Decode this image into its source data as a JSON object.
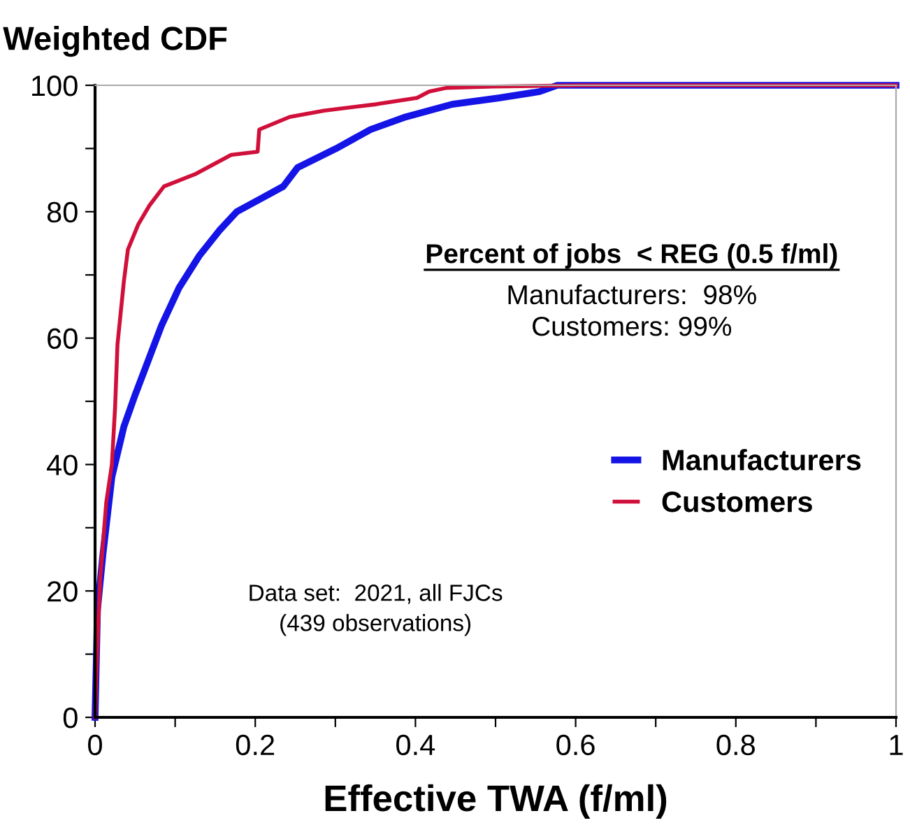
{
  "chart_data": {
    "type": "line",
    "ylabel": "Weighted CDF",
    "xlabel": "Effective TWA (f/ml)",
    "xlim": [
      0,
      1
    ],
    "ylim": [
      0,
      100
    ],
    "xticks": [
      0,
      {
        "value": 0.1,
        "label": null
      },
      0.2,
      {
        "value": 0.3,
        "label": null
      },
      0.4,
      {
        "value": 0.5,
        "label": null
      },
      0.6,
      {
        "value": 0.7,
        "label": null
      },
      0.8,
      {
        "value": 0.9,
        "label": null
      },
      1
    ],
    "yticks": [
      0,
      {
        "value": 10,
        "label": null
      },
      20,
      {
        "value": 30,
        "label": null
      },
      40,
      {
        "value": 50,
        "label": null
      },
      60,
      {
        "value": 70,
        "label": null
      },
      80,
      {
        "value": 90,
        "label": null
      },
      100
    ],
    "grid": false,
    "legend": "right",
    "marker": "none",
    "line_style": "solid",
    "series": [
      {
        "name": "Manufacturers",
        "color": "#1414e6",
        "x": [
          0,
          0.003,
          0.01,
          0.021,
          0.036,
          0.05,
          0.068,
          0.083,
          0.105,
          0.13,
          0.155,
          0.177,
          0.206,
          0.235,
          0.253,
          0.301,
          0.344,
          0.388,
          0.446,
          0.504,
          0.555,
          0.577,
          0.606,
          1
        ],
        "values": [
          0,
          17,
          26,
          38,
          46,
          51,
          57,
          62,
          68,
          73,
          77,
          80,
          82,
          84,
          87,
          90,
          93,
          95,
          97,
          98,
          99,
          100,
          100,
          100
        ]
      },
      {
        "name": "Customers",
        "color": "#d0103a",
        "x": [
          0,
          0.003,
          0.0065,
          0.014,
          0.021,
          0.025,
          0.028,
          0.036,
          0.041,
          0.054,
          0.068,
          0.086,
          0.126,
          0.17,
          0.203,
          0.205,
          0.243,
          0.286,
          0.351,
          0.402,
          0.417,
          0.439,
          0.497,
          0.606,
          1
        ],
        "values": [
          0,
          12,
          22,
          34,
          40,
          49,
          59,
          69,
          74,
          78,
          81,
          84,
          86,
          89,
          89.5,
          93,
          95,
          96,
          97,
          98,
          99,
          99.6,
          99.8,
          100,
          100
        ]
      }
    ],
    "annotations": [
      "Percent of jobs  < REG (0.5 f/ml)",
      "Manufacturers:  98%",
      "Customers: 99%",
      "Data set:  2021, all FJCs\n(439 observations)"
    ]
  }
}
